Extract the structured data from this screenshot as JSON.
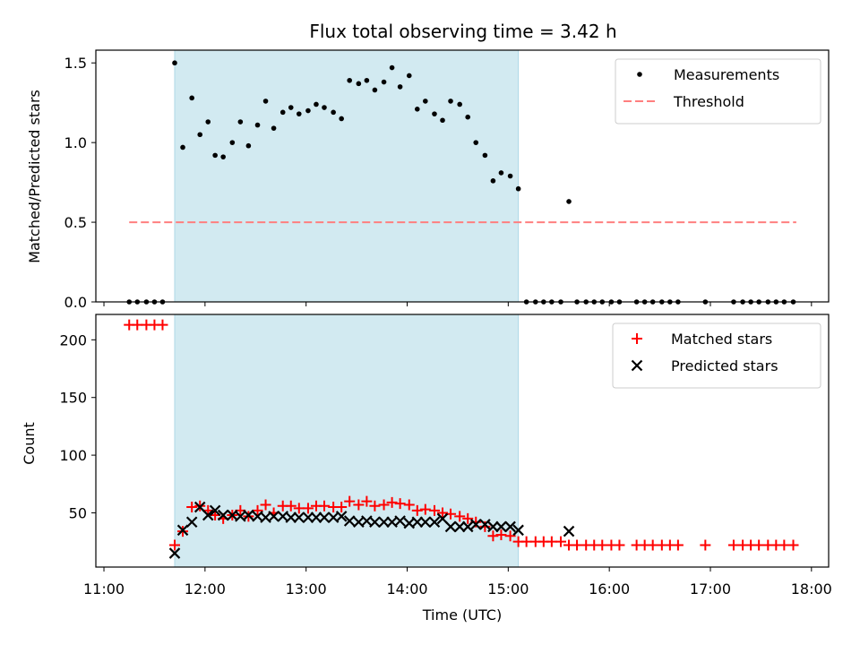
{
  "chart_data": {
    "title": "Flux total observing time = 3.42 h",
    "x_time_axis": {
      "label": "Time (UTC)",
      "range_hours": [
        10.92,
        18.17
      ],
      "tick_labels": [
        "11:00",
        "12:00",
        "13:00",
        "14:00",
        "15:00",
        "16:00",
        "17:00",
        "18:00"
      ],
      "tick_hours": [
        11,
        12,
        13,
        14,
        15,
        16,
        17,
        18
      ]
    },
    "observing_window_hours": [
      11.7,
      15.1
    ],
    "window_color": "#add8e6",
    "panels": [
      {
        "type": "scatter",
        "ylabel": "Matched/Predicted stars",
        "ylim": [
          0,
          1.58
        ],
        "yticks": [
          0.0,
          0.5,
          1.0,
          1.5
        ],
        "ytick_labels": [
          "0.0",
          "0.5",
          "1.0",
          "1.5"
        ],
        "legend_position": "top-right",
        "threshold": {
          "name": "Threshold",
          "value": 0.5,
          "x_range": [
            11.25,
            17.85
          ],
          "color": "#ff7f7f"
        },
        "series": [
          {
            "name": "Measurements",
            "marker": "dot",
            "color": "#000000",
            "points": [
              [
                11.25,
                0
              ],
              [
                11.33,
                0
              ],
              [
                11.42,
                0
              ],
              [
                11.5,
                0
              ],
              [
                11.58,
                0
              ],
              [
                11.7,
                1.5
              ],
              [
                11.78,
                0.97
              ],
              [
                11.87,
                1.28
              ],
              [
                11.95,
                1.05
              ],
              [
                12.03,
                1.13
              ],
              [
                12.1,
                0.92
              ],
              [
                12.18,
                0.91
              ],
              [
                12.27,
                1.0
              ],
              [
                12.35,
                1.13
              ],
              [
                12.43,
                0.98
              ],
              [
                12.52,
                1.11
              ],
              [
                12.6,
                1.26
              ],
              [
                12.68,
                1.09
              ],
              [
                12.77,
                1.19
              ],
              [
                12.85,
                1.22
              ],
              [
                12.93,
                1.18
              ],
              [
                13.02,
                1.2
              ],
              [
                13.1,
                1.24
              ],
              [
                13.18,
                1.22
              ],
              [
                13.27,
                1.19
              ],
              [
                13.35,
                1.15
              ],
              [
                13.43,
                1.39
              ],
              [
                13.52,
                1.37
              ],
              [
                13.6,
                1.39
              ],
              [
                13.68,
                1.33
              ],
              [
                13.77,
                1.38
              ],
              [
                13.85,
                1.47
              ],
              [
                13.93,
                1.35
              ],
              [
                14.02,
                1.42
              ],
              [
                14.1,
                1.21
              ],
              [
                14.18,
                1.26
              ],
              [
                14.27,
                1.18
              ],
              [
                14.35,
                1.14
              ],
              [
                14.43,
                1.26
              ],
              [
                14.52,
                1.24
              ],
              [
                14.6,
                1.16
              ],
              [
                14.68,
                1.0
              ],
              [
                14.77,
                0.92
              ],
              [
                14.85,
                0.76
              ],
              [
                14.93,
                0.81
              ],
              [
                15.02,
                0.79
              ],
              [
                15.1,
                0.71
              ],
              [
                15.18,
                0
              ],
              [
                15.27,
                0
              ],
              [
                15.35,
                0
              ],
              [
                15.43,
                0
              ],
              [
                15.52,
                0
              ],
              [
                15.6,
                0.63
              ],
              [
                15.68,
                0
              ],
              [
                15.77,
                0
              ],
              [
                15.85,
                0
              ],
              [
                15.93,
                0
              ],
              [
                16.02,
                0
              ],
              [
                16.1,
                0
              ],
              [
                16.27,
                0
              ],
              [
                16.35,
                0
              ],
              [
                16.43,
                0
              ],
              [
                16.52,
                0
              ],
              [
                16.6,
                0
              ],
              [
                16.68,
                0
              ],
              [
                16.95,
                0
              ],
              [
                17.23,
                0
              ],
              [
                17.32,
                0
              ],
              [
                17.4,
                0
              ],
              [
                17.48,
                0
              ],
              [
                17.57,
                0
              ],
              [
                17.65,
                0
              ],
              [
                17.73,
                0
              ],
              [
                17.82,
                0
              ]
            ]
          }
        ]
      },
      {
        "type": "scatter",
        "ylabel": "Count",
        "xlabel": "Time (UTC)",
        "ylim": [
          3,
          222
        ],
        "yticks": [
          50,
          100,
          150,
          200
        ],
        "ytick_labels": [
          "50",
          "100",
          "150",
          "200"
        ],
        "legend_position": "top-right",
        "series": [
          {
            "name": "Matched stars",
            "marker": "plus",
            "color": "#ff0000",
            "points": [
              [
                11.25,
                213
              ],
              [
                11.33,
                213
              ],
              [
                11.42,
                213
              ],
              [
                11.5,
                213
              ],
              [
                11.58,
                213
              ],
              [
                11.7,
                22
              ],
              [
                11.78,
                34
              ],
              [
                11.87,
                55
              ],
              [
                11.95,
                56
              ],
              [
                12.03,
                52
              ],
              [
                12.1,
                48
              ],
              [
                12.18,
                45
              ],
              [
                12.27,
                48
              ],
              [
                12.35,
                52
              ],
              [
                12.43,
                47
              ],
              [
                12.52,
                52
              ],
              [
                12.6,
                57
              ],
              [
                12.68,
                50
              ],
              [
                12.77,
                56
              ],
              [
                12.85,
                56
              ],
              [
                12.93,
                54
              ],
              [
                13.02,
                54
              ],
              [
                13.1,
                56
              ],
              [
                13.18,
                56
              ],
              [
                13.27,
                55
              ],
              [
                13.35,
                55
              ],
              [
                13.43,
                60
              ],
              [
                13.52,
                57
              ],
              [
                13.6,
                60
              ],
              [
                13.68,
                56
              ],
              [
                13.77,
                57
              ],
              [
                13.85,
                59
              ],
              [
                13.93,
                58
              ],
              [
                14.02,
                57
              ],
              [
                14.1,
                52
              ],
              [
                14.18,
                53
              ],
              [
                14.27,
                52
              ],
              [
                14.35,
                50
              ],
              [
                14.43,
                49
              ],
              [
                14.52,
                47
              ],
              [
                14.6,
                45
              ],
              [
                14.68,
                42
              ],
              [
                14.77,
                38
              ],
              [
                14.85,
                30
              ],
              [
                14.93,
                31
              ],
              [
                15.02,
                30
              ],
              [
                15.1,
                25
              ],
              [
                15.18,
                25
              ],
              [
                15.27,
                25
              ],
              [
                15.35,
                25
              ],
              [
                15.43,
                25
              ],
              [
                15.52,
                25
              ],
              [
                15.6,
                22
              ],
              [
                15.68,
                22
              ],
              [
                15.77,
                22
              ],
              [
                15.85,
                22
              ],
              [
                15.93,
                22
              ],
              [
                16.02,
                22
              ],
              [
                16.1,
                22
              ],
              [
                16.27,
                22
              ],
              [
                16.35,
                22
              ],
              [
                16.43,
                22
              ],
              [
                16.52,
                22
              ],
              [
                16.6,
                22
              ],
              [
                16.68,
                22
              ],
              [
                16.95,
                22
              ],
              [
                17.23,
                22
              ],
              [
                17.32,
                22
              ],
              [
                17.4,
                22
              ],
              [
                17.48,
                22
              ],
              [
                17.57,
                22
              ],
              [
                17.65,
                22
              ],
              [
                17.73,
                22
              ],
              [
                17.82,
                22
              ]
            ]
          },
          {
            "name": "Predicted stars",
            "marker": "x",
            "color": "#000000",
            "points": [
              [
                11.7,
                15
              ],
              [
                11.78,
                35
              ],
              [
                11.87,
                42
              ],
              [
                11.95,
                55
              ],
              [
                12.03,
                48
              ],
              [
                12.1,
                52
              ],
              [
                12.18,
                48
              ],
              [
                12.27,
                48
              ],
              [
                12.35,
                47
              ],
              [
                12.43,
                48
              ],
              [
                12.52,
                47
              ],
              [
                12.6,
                46
              ],
              [
                12.68,
                47
              ],
              [
                12.77,
                47
              ],
              [
                12.85,
                46
              ],
              [
                12.93,
                46
              ],
              [
                13.02,
                46
              ],
              [
                13.1,
                46
              ],
              [
                13.18,
                46
              ],
              [
                13.27,
                46
              ],
              [
                13.35,
                47
              ],
              [
                13.43,
                43
              ],
              [
                13.52,
                42
              ],
              [
                13.6,
                43
              ],
              [
                13.68,
                42
              ],
              [
                13.77,
                42
              ],
              [
                13.85,
                42
              ],
              [
                13.93,
                43
              ],
              [
                14.02,
                41
              ],
              [
                14.1,
                42
              ],
              [
                14.18,
                42
              ],
              [
                14.27,
                42
              ],
              [
                14.35,
                45
              ],
              [
                14.43,
                38
              ],
              [
                14.52,
                38
              ],
              [
                14.6,
                38
              ],
              [
                14.68,
                40
              ],
              [
                14.77,
                40
              ],
              [
                14.85,
                38
              ],
              [
                14.93,
                38
              ],
              [
                15.02,
                38
              ],
              [
                15.1,
                35
              ],
              [
                15.6,
                34
              ]
            ]
          }
        ]
      }
    ]
  }
}
